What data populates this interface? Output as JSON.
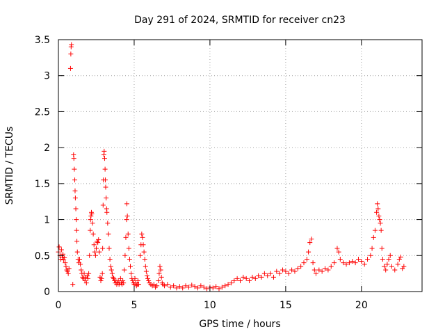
{
  "chart_data": {
    "type": "scatter",
    "title": "Day 291 of 2024, SRMTID for receiver cn23",
    "xlabel": "GPS time / hours",
    "ylabel": "SRMTID / TECUs",
    "xlim": [
      0,
      24
    ],
    "ylim": [
      0,
      3.5
    ],
    "xticks": [
      0,
      5,
      10,
      15,
      20
    ],
    "yticks": [
      0,
      0.5,
      1,
      1.5,
      2,
      2.5,
      3,
      3.5
    ],
    "ytick_labels": [
      "0",
      "0.5",
      "1",
      "1.5",
      "2",
      "2.5",
      "3",
      "3.5"
    ],
    "grid": true,
    "marker": "+",
    "series": [
      {
        "name": "SRMTID",
        "color": "#ff0000",
        "points": [
          [
            0.0,
            0.55
          ],
          [
            0.05,
            0.62
          ],
          [
            0.1,
            0.5
          ],
          [
            0.15,
            0.45
          ],
          [
            0.2,
            0.58
          ],
          [
            0.25,
            0.48
          ],
          [
            0.3,
            0.52
          ],
          [
            0.35,
            0.44
          ],
          [
            0.4,
            0.47
          ],
          [
            0.45,
            0.4
          ],
          [
            0.5,
            0.35
          ],
          [
            0.55,
            0.3
          ],
          [
            0.6,
            0.28
          ],
          [
            0.65,
            0.25
          ],
          [
            0.7,
            0.32
          ],
          [
            0.8,
            3.1
          ],
          [
            0.82,
            3.3
          ],
          [
            0.84,
            3.4
          ],
          [
            0.86,
            3.43
          ],
          [
            0.95,
            0.1
          ],
          [
            1.0,
            1.9
          ],
          [
            1.02,
            1.85
          ],
          [
            1.05,
            1.7
          ],
          [
            1.08,
            1.55
          ],
          [
            1.1,
            1.4
          ],
          [
            1.12,
            1.3
          ],
          [
            1.15,
            1.15
          ],
          [
            1.18,
            1.0
          ],
          [
            1.2,
            0.85
          ],
          [
            1.22,
            0.7
          ],
          [
            1.25,
            0.55
          ],
          [
            1.3,
            0.45
          ],
          [
            1.35,
            0.4
          ],
          [
            1.4,
            0.45
          ],
          [
            1.45,
            0.38
          ],
          [
            1.5,
            0.3
          ],
          [
            1.55,
            0.25
          ],
          [
            1.6,
            0.2
          ],
          [
            1.65,
            0.18
          ],
          [
            1.7,
            0.25
          ],
          [
            1.75,
            0.15
          ],
          [
            1.8,
            0.2
          ],
          [
            1.85,
            0.12
          ],
          [
            1.9,
            0.22
          ],
          [
            1.95,
            0.18
          ],
          [
            2.0,
            0.25
          ],
          [
            2.05,
            0.5
          ],
          [
            2.1,
            0.85
          ],
          [
            2.12,
            1.0
          ],
          [
            2.15,
            1.05
          ],
          [
            2.18,
            1.1
          ],
          [
            2.2,
            1.08
          ],
          [
            2.25,
            0.95
          ],
          [
            2.3,
            0.8
          ],
          [
            2.35,
            0.65
          ],
          [
            2.4,
            0.55
          ],
          [
            2.45,
            0.5
          ],
          [
            2.5,
            0.6
          ],
          [
            2.55,
            0.7
          ],
          [
            2.6,
            0.68
          ],
          [
            2.65,
            0.72
          ],
          [
            2.7,
            0.55
          ],
          [
            2.75,
            0.2
          ],
          [
            2.8,
            0.15
          ],
          [
            2.85,
            0.18
          ],
          [
            2.9,
            0.25
          ],
          [
            2.92,
            0.6
          ],
          [
            2.95,
            1.2
          ],
          [
            2.97,
            1.55
          ],
          [
            3.0,
            1.9
          ],
          [
            3.02,
            1.95
          ],
          [
            3.05,
            1.85
          ],
          [
            3.08,
            1.7
          ],
          [
            3.1,
            1.55
          ],
          [
            3.12,
            1.45
          ],
          [
            3.15,
            1.3
          ],
          [
            3.18,
            1.15
          ],
          [
            3.2,
            1.1
          ],
          [
            3.25,
            0.95
          ],
          [
            3.3,
            0.8
          ],
          [
            3.35,
            0.6
          ],
          [
            3.4,
            0.45
          ],
          [
            3.45,
            0.35
          ],
          [
            3.5,
            0.3
          ],
          [
            3.55,
            0.25
          ],
          [
            3.6,
            0.2
          ],
          [
            3.65,
            0.18
          ],
          [
            3.7,
            0.15
          ],
          [
            3.75,
            0.12
          ],
          [
            3.8,
            0.15
          ],
          [
            3.85,
            0.1
          ],
          [
            3.9,
            0.12
          ],
          [
            3.95,
            0.15
          ],
          [
            4.0,
            0.1
          ],
          [
            4.05,
            0.12
          ],
          [
            4.1,
            0.18
          ],
          [
            4.15,
            0.12
          ],
          [
            4.2,
            0.1
          ],
          [
            4.25,
            0.15
          ],
          [
            4.3,
            0.12
          ],
          [
            4.35,
            0.3
          ],
          [
            4.4,
            0.5
          ],
          [
            4.45,
            0.75
          ],
          [
            4.5,
            1.0
          ],
          [
            4.52,
            1.22
          ],
          [
            4.55,
            1.05
          ],
          [
            4.6,
            0.8
          ],
          [
            4.65,
            0.6
          ],
          [
            4.7,
            0.45
          ],
          [
            4.75,
            0.35
          ],
          [
            4.8,
            0.25
          ],
          [
            4.85,
            0.18
          ],
          [
            4.9,
            0.15
          ],
          [
            4.95,
            0.12
          ],
          [
            5.0,
            0.1
          ],
          [
            5.05,
            0.18
          ],
          [
            5.1,
            0.12
          ],
          [
            5.15,
            0.08
          ],
          [
            5.2,
            0.1
          ],
          [
            5.25,
            0.15
          ],
          [
            5.3,
            0.1
          ],
          [
            5.4,
            0.5
          ],
          [
            5.45,
            0.65
          ],
          [
            5.5,
            0.8
          ],
          [
            5.55,
            0.75
          ],
          [
            5.6,
            0.65
          ],
          [
            5.65,
            0.55
          ],
          [
            5.7,
            0.45
          ],
          [
            5.75,
            0.35
          ],
          [
            5.8,
            0.28
          ],
          [
            5.85,
            0.22
          ],
          [
            5.9,
            0.18
          ],
          [
            5.95,
            0.15
          ],
          [
            6.0,
            0.12
          ],
          [
            6.1,
            0.1
          ],
          [
            6.2,
            0.08
          ],
          [
            6.3,
            0.1
          ],
          [
            6.4,
            0.06
          ],
          [
            6.5,
            0.08
          ],
          [
            6.6,
            0.15
          ],
          [
            6.65,
            0.25
          ],
          [
            6.7,
            0.35
          ],
          [
            6.75,
            0.3
          ],
          [
            6.8,
            0.2
          ],
          [
            6.85,
            0.12
          ],
          [
            6.9,
            0.1
          ],
          [
            7.0,
            0.08
          ],
          [
            7.2,
            0.1
          ],
          [
            7.4,
            0.06
          ],
          [
            7.6,
            0.08
          ],
          [
            7.8,
            0.05
          ],
          [
            8.0,
            0.07
          ],
          [
            8.2,
            0.05
          ],
          [
            8.4,
            0.08
          ],
          [
            8.6,
            0.06
          ],
          [
            8.8,
            0.09
          ],
          [
            9.0,
            0.07
          ],
          [
            9.2,
            0.05
          ],
          [
            9.4,
            0.08
          ],
          [
            9.6,
            0.06
          ],
          [
            9.8,
            0.04
          ],
          [
            10.0,
            0.06
          ],
          [
            10.2,
            0.05
          ],
          [
            10.4,
            0.07
          ],
          [
            10.6,
            0.04
          ],
          [
            10.8,
            0.06
          ],
          [
            11.0,
            0.08
          ],
          [
            11.2,
            0.1
          ],
          [
            11.4,
            0.12
          ],
          [
            11.6,
            0.15
          ],
          [
            11.8,
            0.18
          ],
          [
            12.0,
            0.15
          ],
          [
            12.2,
            0.2
          ],
          [
            12.4,
            0.18
          ],
          [
            12.6,
            0.15
          ],
          [
            12.8,
            0.2
          ],
          [
            13.0,
            0.18
          ],
          [
            13.2,
            0.22
          ],
          [
            13.4,
            0.2
          ],
          [
            13.6,
            0.25
          ],
          [
            13.8,
            0.22
          ],
          [
            14.0,
            0.25
          ],
          [
            14.2,
            0.2
          ],
          [
            14.4,
            0.28
          ],
          [
            14.6,
            0.25
          ],
          [
            14.8,
            0.3
          ],
          [
            15.0,
            0.28
          ],
          [
            15.2,
            0.25
          ],
          [
            15.4,
            0.3
          ],
          [
            15.6,
            0.28
          ],
          [
            15.8,
            0.32
          ],
          [
            16.0,
            0.35
          ],
          [
            16.2,
            0.4
          ],
          [
            16.4,
            0.45
          ],
          [
            16.5,
            0.55
          ],
          [
            16.6,
            0.68
          ],
          [
            16.7,
            0.73
          ],
          [
            16.8,
            0.4
          ],
          [
            16.9,
            0.3
          ],
          [
            17.0,
            0.25
          ],
          [
            17.2,
            0.3
          ],
          [
            17.4,
            0.28
          ],
          [
            17.6,
            0.32
          ],
          [
            17.8,
            0.3
          ],
          [
            18.0,
            0.35
          ],
          [
            18.2,
            0.4
          ],
          [
            18.4,
            0.6
          ],
          [
            18.5,
            0.55
          ],
          [
            18.6,
            0.45
          ],
          [
            18.8,
            0.4
          ],
          [
            19.0,
            0.38
          ],
          [
            19.2,
            0.4
          ],
          [
            19.4,
            0.42
          ],
          [
            19.6,
            0.4
          ],
          [
            19.8,
            0.45
          ],
          [
            20.0,
            0.42
          ],
          [
            20.2,
            0.38
          ],
          [
            20.4,
            0.45
          ],
          [
            20.6,
            0.5
          ],
          [
            20.7,
            0.6
          ],
          [
            20.8,
            0.75
          ],
          [
            20.9,
            0.85
          ],
          [
            21.0,
            1.1
          ],
          [
            21.05,
            1.22
          ],
          [
            21.1,
            1.15
          ],
          [
            21.15,
            1.05
          ],
          [
            21.2,
            1.0
          ],
          [
            21.25,
            0.95
          ],
          [
            21.3,
            0.85
          ],
          [
            21.35,
            0.6
          ],
          [
            21.4,
            0.45
          ],
          [
            21.5,
            0.35
          ],
          [
            21.6,
            0.3
          ],
          [
            21.7,
            0.38
          ],
          [
            21.8,
            0.45
          ],
          [
            21.9,
            0.5
          ],
          [
            22.0,
            0.35
          ],
          [
            22.2,
            0.3
          ],
          [
            22.4,
            0.38
          ],
          [
            22.5,
            0.45
          ],
          [
            22.6,
            0.48
          ],
          [
            22.7,
            0.32
          ],
          [
            22.8,
            0.35
          ]
        ]
      }
    ]
  }
}
